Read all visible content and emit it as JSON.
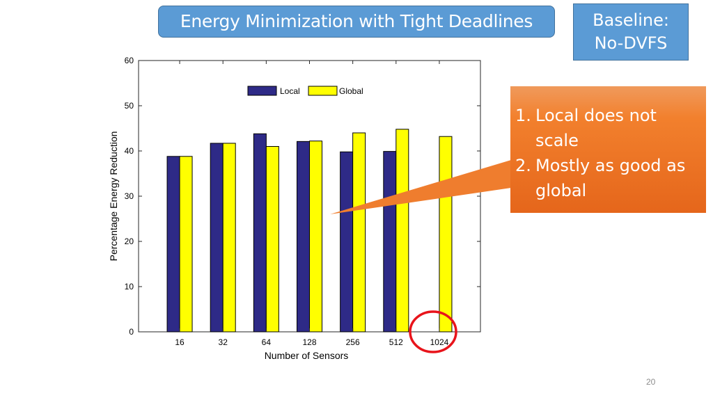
{
  "slide": {
    "title": "Energy Minimization with Tight Deadlines",
    "baseline_line1": "Baseline:",
    "baseline_line2": "No-DVFS",
    "callout_items": [
      {
        "num": "1.",
        "text": "Local does not scale"
      },
      {
        "num": "2.",
        "text": "Mostly as good as global"
      }
    ],
    "page_number": "20",
    "colors": {
      "title_fill": "#5b9bd5",
      "callout_fill": "#ed7d31",
      "local_bar": "#2e2a87",
      "global_bar": "#ffff00",
      "highlight_circle": "#e8141b"
    },
    "highlight": "circle around the 1024 category"
  },
  "chart_data": {
    "type": "bar",
    "categories": [
      "16",
      "32",
      "64",
      "128",
      "256",
      "512",
      "1024"
    ],
    "series": [
      {
        "name": "Local",
        "values": [
          38.8,
          41.7,
          43.8,
          42.1,
          39.8,
          39.9,
          null
        ]
      },
      {
        "name": "Global",
        "values": [
          38.8,
          41.7,
          41.0,
          42.2,
          44.0,
          44.8,
          43.2
        ]
      }
    ],
    "xlabel": "Number of Sensors",
    "ylabel": "Percentage Energy Reduction",
    "ylim": [
      0,
      60
    ],
    "yticks": [
      0,
      10,
      20,
      30,
      40,
      50,
      60
    ],
    "grid": false,
    "legend_position": "top-center"
  }
}
